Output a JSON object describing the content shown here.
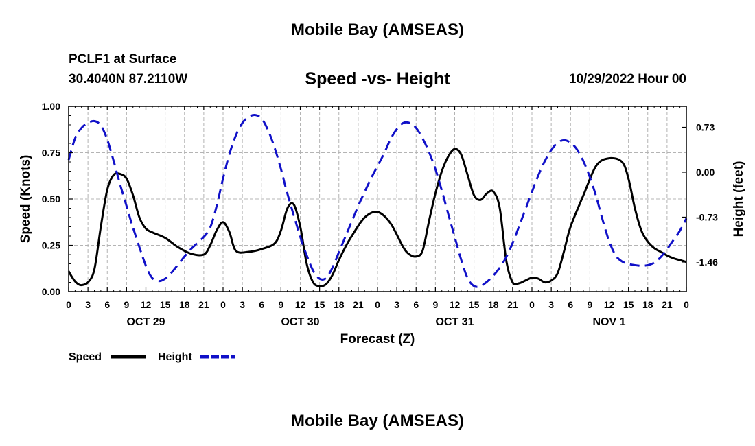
{
  "header": {
    "title": "Mobile Bay (AMSEAS)",
    "station": "PCLF1 at Surface",
    "coords": "30.4040N  87.2110W",
    "subtitle": "Speed -vs- Height",
    "datetime": "10/29/2022 Hour 00"
  },
  "footer": {
    "title": "Mobile Bay (AMSEAS)"
  },
  "colors": {
    "speed": "#000000",
    "height": "#1010c8",
    "grid": "#b4b4b4"
  },
  "chart_data": {
    "type": "line",
    "title": "Speed -vs- Height",
    "xlabel": "Forecast (Z)",
    "ylabel": "Speed (Knots)",
    "y2label": "Height (feet)",
    "x_range_hours": [
      0,
      96
    ],
    "x_tick_step_hours": 3,
    "x_tick_labels": [
      "0",
      "3",
      "6",
      "9",
      "12",
      "15",
      "18",
      "21",
      "0",
      "3",
      "6",
      "9",
      "12",
      "15",
      "18",
      "21",
      "0",
      "3",
      "6",
      "9",
      "12",
      "15",
      "18",
      "21",
      "0",
      "3",
      "6",
      "9",
      "12",
      "15",
      "18",
      "21",
      "0"
    ],
    "day_labels": [
      {
        "hour": 12,
        "label": "OCT 29"
      },
      {
        "hour": 36,
        "label": "OCT 30"
      },
      {
        "hour": 60,
        "label": "OCT 31"
      },
      {
        "hour": 84,
        "label": "NOV 1"
      }
    ],
    "ylim": [
      0,
      1
    ],
    "y_ticks": [
      0,
      0.25,
      0.5,
      0.75,
      1.0
    ],
    "y_tick_labels": [
      "0.00",
      "0.25",
      "0.50",
      "0.75",
      "1.00"
    ],
    "y2lim": [
      -1.94,
      1.07
    ],
    "y2_ticks": [
      0.73,
      0.0,
      -0.73,
      -1.46
    ],
    "y2_tick_labels": [
      "0.73",
      "0.00",
      "-0.73",
      "-1.46"
    ],
    "grid": true,
    "legend": [
      {
        "name": "Speed",
        "style": "solid"
      },
      {
        "name": "Height",
        "style": "dashed"
      }
    ],
    "series": [
      {
        "name": "Speed",
        "axis": "left",
        "x": [
          0,
          0.5,
          1,
          1.5,
          2,
          3,
          4,
          5,
          6,
          7,
          8,
          9,
          10,
          11,
          12,
          13,
          15,
          17,
          19,
          21,
          22,
          23,
          24,
          25,
          26,
          28,
          30,
          32,
          33,
          34,
          35,
          36,
          37,
          38,
          39,
          40,
          41,
          42,
          43,
          44,
          46,
          48,
          50,
          52,
          53,
          54,
          55,
          56,
          57,
          58,
          59,
          60,
          61,
          62,
          63,
          64,
          65,
          66,
          67,
          68,
          69,
          70,
          71,
          72,
          73,
          74,
          75,
          76,
          77,
          78,
          80,
          82,
          84,
          86,
          87,
          88,
          89,
          90,
          91,
          92,
          93,
          94,
          95,
          96
        ],
        "values": [
          0.11,
          0.08,
          0.055,
          0.04,
          0.035,
          0.05,
          0.12,
          0.35,
          0.55,
          0.63,
          0.635,
          0.61,
          0.52,
          0.4,
          0.34,
          0.32,
          0.29,
          0.24,
          0.205,
          0.2,
          0.25,
          0.33,
          0.375,
          0.32,
          0.22,
          0.215,
          0.23,
          0.26,
          0.33,
          0.45,
          0.47,
          0.35,
          0.15,
          0.05,
          0.03,
          0.04,
          0.09,
          0.17,
          0.24,
          0.3,
          0.4,
          0.43,
          0.37,
          0.24,
          0.2,
          0.19,
          0.22,
          0.38,
          0.53,
          0.65,
          0.73,
          0.77,
          0.74,
          0.63,
          0.52,
          0.495,
          0.53,
          0.54,
          0.45,
          0.17,
          0.05,
          0.045,
          0.06,
          0.075,
          0.07,
          0.05,
          0.06,
          0.1,
          0.22,
          0.35,
          0.52,
          0.68,
          0.72,
          0.7,
          0.61,
          0.45,
          0.33,
          0.27,
          0.235,
          0.215,
          0.195,
          0.18,
          0.17,
          0.16
        ]
      },
      {
        "name": "Height",
        "axis": "right",
        "x": [
          0,
          1,
          2,
          3,
          4,
          5,
          6,
          7,
          8,
          9,
          10,
          12,
          13,
          14,
          15,
          16,
          17,
          18,
          19,
          20,
          21,
          22,
          23,
          24,
          25,
          26,
          27,
          28,
          29,
          30,
          31,
          32,
          33,
          34,
          36,
          37,
          38,
          39,
          40,
          41,
          42,
          43,
          44,
          45,
          46,
          47,
          48,
          49,
          50,
          51,
          52,
          53,
          54,
          55,
          56,
          57,
          58,
          59,
          60,
          61,
          62,
          63,
          64,
          65,
          66,
          67,
          68,
          69,
          70,
          71,
          72,
          73,
          74,
          75,
          76,
          77,
          78,
          79,
          80,
          81,
          82,
          83,
          84,
          85,
          86,
          87,
          88,
          89,
          90,
          91,
          92,
          93,
          94,
          95,
          96
        ],
        "values": [
          0.2,
          0.55,
          0.72,
          0.8,
          0.83,
          0.76,
          0.53,
          0.18,
          -0.2,
          -0.55,
          -0.9,
          -1.52,
          -1.72,
          -1.77,
          -1.73,
          -1.63,
          -1.5,
          -1.37,
          -1.25,
          -1.15,
          -1.05,
          -0.9,
          -0.55,
          -0.1,
          0.3,
          0.6,
          0.8,
          0.9,
          0.93,
          0.87,
          0.68,
          0.4,
          0.05,
          -0.35,
          -1.05,
          -1.35,
          -1.6,
          -1.73,
          -1.72,
          -1.55,
          -1.3,
          -1.05,
          -0.8,
          -0.55,
          -0.32,
          -0.1,
          0.1,
          0.3,
          0.53,
          0.7,
          0.8,
          0.8,
          0.72,
          0.55,
          0.33,
          0.05,
          -0.3,
          -0.68,
          -1.05,
          -1.42,
          -1.72,
          -1.85,
          -1.85,
          -1.78,
          -1.68,
          -1.55,
          -1.38,
          -1.15,
          -0.88,
          -0.6,
          -0.32,
          -0.05,
          0.18,
          0.36,
          0.48,
          0.52,
          0.48,
          0.37,
          0.18,
          -0.08,
          -0.4,
          -0.78,
          -1.12,
          -1.35,
          -1.45,
          -1.49,
          -1.51,
          -1.52,
          -1.51,
          -1.47,
          -1.38,
          -1.25,
          -1.1,
          -0.95,
          -0.75
        ]
      }
    ]
  }
}
